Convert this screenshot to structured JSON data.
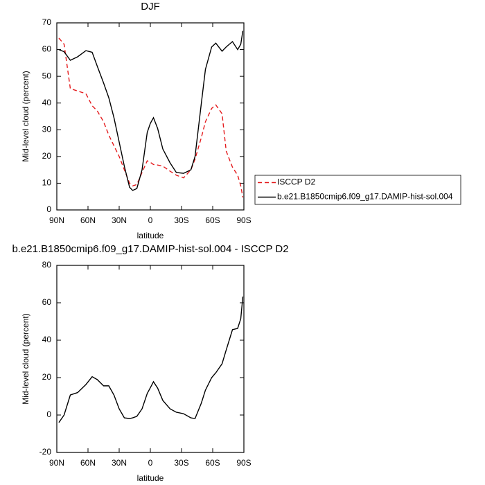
{
  "chart_data": [
    {
      "type": "line",
      "title": "DJF",
      "xlabel": "latitude",
      "ylabel": "Mid-level cloud (percent)",
      "x": [
        88,
        83,
        77,
        70,
        62,
        56,
        51,
        45,
        40,
        35,
        30,
        25,
        20,
        17,
        13,
        8,
        3,
        0,
        -3,
        -7,
        -12,
        -19,
        -25,
        -32,
        -39,
        -43,
        -49,
        -53,
        -59,
        -63,
        -69,
        -73,
        -79,
        -84,
        -87,
        -89
      ],
      "series": [
        {
          "name": "ISCCP D2",
          "color": "#e41a1c",
          "line_style": "dashed",
          "values": [
            64.3,
            62,
            45.4,
            44.5,
            43.5,
            39,
            37,
            33,
            28,
            24,
            20,
            15,
            10,
            9,
            9.5,
            14,
            18.4,
            17.8,
            17,
            16.8,
            16.4,
            14.5,
            13,
            12,
            15,
            19,
            27,
            33,
            38,
            39.3,
            36,
            22,
            16,
            13,
            9,
            4.7
          ]
        },
        {
          "name": "b.e21.B1850cmip6.f09_g17.DAMIP-hist-sol.004",
          "color": "#000000",
          "line_style": "solid",
          "values": [
            60,
            59.2,
            56,
            57.3,
            59.6,
            59,
            53.7,
            47.5,
            42,
            34.5,
            25.4,
            16.3,
            8.5,
            7.3,
            8,
            15,
            29,
            32.4,
            34.5,
            30.5,
            22.8,
            17.6,
            14,
            13.7,
            15,
            20,
            39.7,
            52.6,
            61,
            62.4,
            59.4,
            61,
            63,
            60,
            62,
            67
          ]
        }
      ],
      "xlim": [
        90,
        -90
      ],
      "xticks": [
        {
          "value": 90,
          "label": "90N"
        },
        {
          "value": 60,
          "label": "60N"
        },
        {
          "value": 30,
          "label": "30N"
        },
        0,
        {
          "value": -30,
          "label": "30S"
        },
        {
          "value": -60,
          "label": "60S"
        },
        {
          "value": -90,
          "label": "90S"
        }
      ],
      "ylim": [
        0,
        70
      ],
      "yticks": [
        0,
        10,
        20,
        30,
        40,
        50,
        60,
        70
      ],
      "grid": false,
      "legend": "outside-right"
    },
    {
      "type": "line",
      "title": "b.e21.B1850cmip6.f09_g17.DAMIP-hist-sol.004 - ISCCP D2",
      "xlabel": "latitude",
      "ylabel": "Mid-level cloud (percent)",
      "x": [
        88,
        83,
        77,
        70,
        62,
        56,
        51,
        45,
        40,
        35,
        30,
        25,
        20,
        17,
        13,
        8,
        3,
        0,
        -3,
        -7,
        -12,
        -19,
        -25,
        -32,
        -39,
        -43,
        -49,
        -53,
        -59,
        -63,
        -69,
        -73,
        -79,
        -84,
        -87,
        -89
      ],
      "color": "#000000",
      "values": [
        -4,
        0,
        10.7,
        12,
        16.3,
        20.5,
        18.9,
        15.6,
        15.6,
        10.7,
        3.3,
        -1.5,
        -1.9,
        -1.5,
        -0.7,
        3.3,
        11.5,
        14.6,
        17.8,
        14.4,
        7.8,
        3.3,
        1.5,
        0.7,
        -1.5,
        -1.9,
        6.3,
        13.3,
        20,
        22.6,
        27.4,
        34.8,
        45.6,
        46.3,
        51.5,
        63.3
      ],
      "xlim": [
        90,
        -90
      ],
      "xticks": [
        {
          "value": 90,
          "label": "90N"
        },
        {
          "value": 60,
          "label": "60N"
        },
        {
          "value": 30,
          "label": "30N"
        },
        0,
        {
          "value": -30,
          "label": "30S"
        },
        {
          "value": -60,
          "label": "60S"
        },
        {
          "value": -90,
          "label": "90S"
        }
      ],
      "ylim": [
        -20,
        80
      ],
      "yticks": [
        -20,
        0,
        20,
        40,
        60,
        80
      ],
      "grid": false
    }
  ]
}
